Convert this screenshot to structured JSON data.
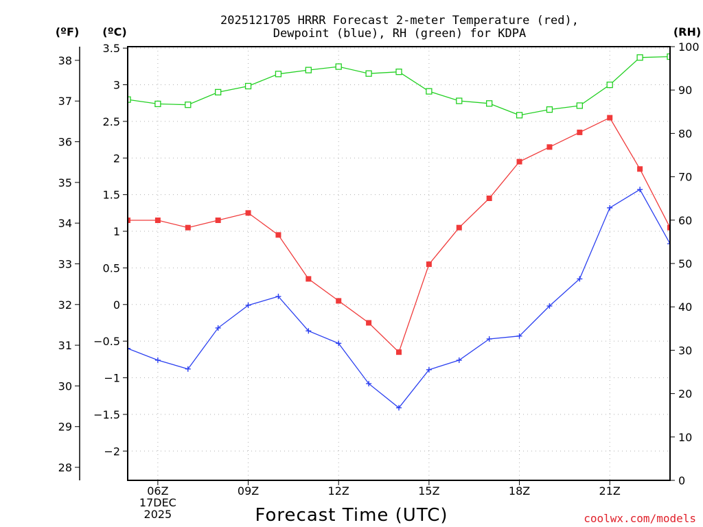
{
  "title_line1": "2025121705 HRRR Forecast 2-meter Temperature (red),",
  "title_line2": "Dewpoint (blue), RH (green) for KDPA",
  "credit": "coolwx.com/models",
  "chart_data": {
    "type": "line",
    "title": "2025121705 HRRR Forecast 2-meter Temperature (red), Dewpoint (blue), RH (green) for KDPA",
    "xlabel": "Forecast Time (UTC)",
    "x_hours": [
      5,
      6,
      7,
      8,
      9,
      10,
      11,
      12,
      13,
      14,
      15,
      16,
      17,
      18,
      19,
      20,
      21,
      22,
      23
    ],
    "xlim": [
      5,
      23
    ],
    "x_ticks": [
      {
        "hour": 6,
        "lines": [
          "06Z",
          "17DEC",
          "2025"
        ]
      },
      {
        "hour": 9,
        "lines": [
          "09Z"
        ]
      },
      {
        "hour": 12,
        "lines": [
          "12Z"
        ]
      },
      {
        "hour": 15,
        "lines": [
          "15Z"
        ]
      },
      {
        "hour": 18,
        "lines": [
          "18Z"
        ]
      },
      {
        "hour": 21,
        "lines": [
          "21Z"
        ]
      }
    ],
    "axes": {
      "fahrenheit": {
        "label": "(ºF)",
        "ticks": [
          28,
          29,
          30,
          31,
          32,
          33,
          34,
          35,
          36,
          37,
          38
        ]
      },
      "celsius": {
        "label": "(ºC)",
        "ylim": [
          -2.4,
          3.52
        ],
        "ticks": [
          "3.5",
          "3",
          "2.5",
          "2",
          "1.5",
          "1",
          "0.5",
          "0",
          "−0.5",
          "−1",
          "−1.5",
          "−2"
        ]
      },
      "rh": {
        "label": "(RH)",
        "ylim": [
          0,
          100
        ],
        "ticks": [
          0,
          10,
          20,
          30,
          40,
          50,
          60,
          70,
          80,
          90,
          100
        ]
      }
    },
    "series": [
      {
        "name": "Temperature",
        "axis": "celsius",
        "color": "#f03a3a",
        "marker": "filled-square",
        "values": [
          1.15,
          1.15,
          1.05,
          1.15,
          1.25,
          0.95,
          0.35,
          0.05,
          -0.25,
          -0.65,
          0.55,
          1.05,
          1.45,
          1.95,
          2.15,
          2.35,
          2.55,
          1.85,
          1.05
        ]
      },
      {
        "name": "Dewpoint",
        "axis": "celsius",
        "color": "#2a3ff0",
        "marker": "plus",
        "values": [
          -0.6,
          -0.76,
          -0.88,
          -0.32,
          -0.01,
          0.11,
          -0.36,
          -0.53,
          -1.08,
          -1.41,
          -0.89,
          -0.76,
          -0.47,
          -0.43,
          -0.02,
          0.35,
          1.32,
          1.57,
          0.83
        ]
      },
      {
        "name": "RH",
        "axis": "rh",
        "color": "#22d022",
        "marker": "open-square",
        "values": [
          87.8,
          86.8,
          86.6,
          89.5,
          90.9,
          93.7,
          94.6,
          95.4,
          93.8,
          94.2,
          89.7,
          87.5,
          86.9,
          84.2,
          85.5,
          86.4,
          91.2,
          97.5,
          97.7
        ]
      }
    ]
  }
}
